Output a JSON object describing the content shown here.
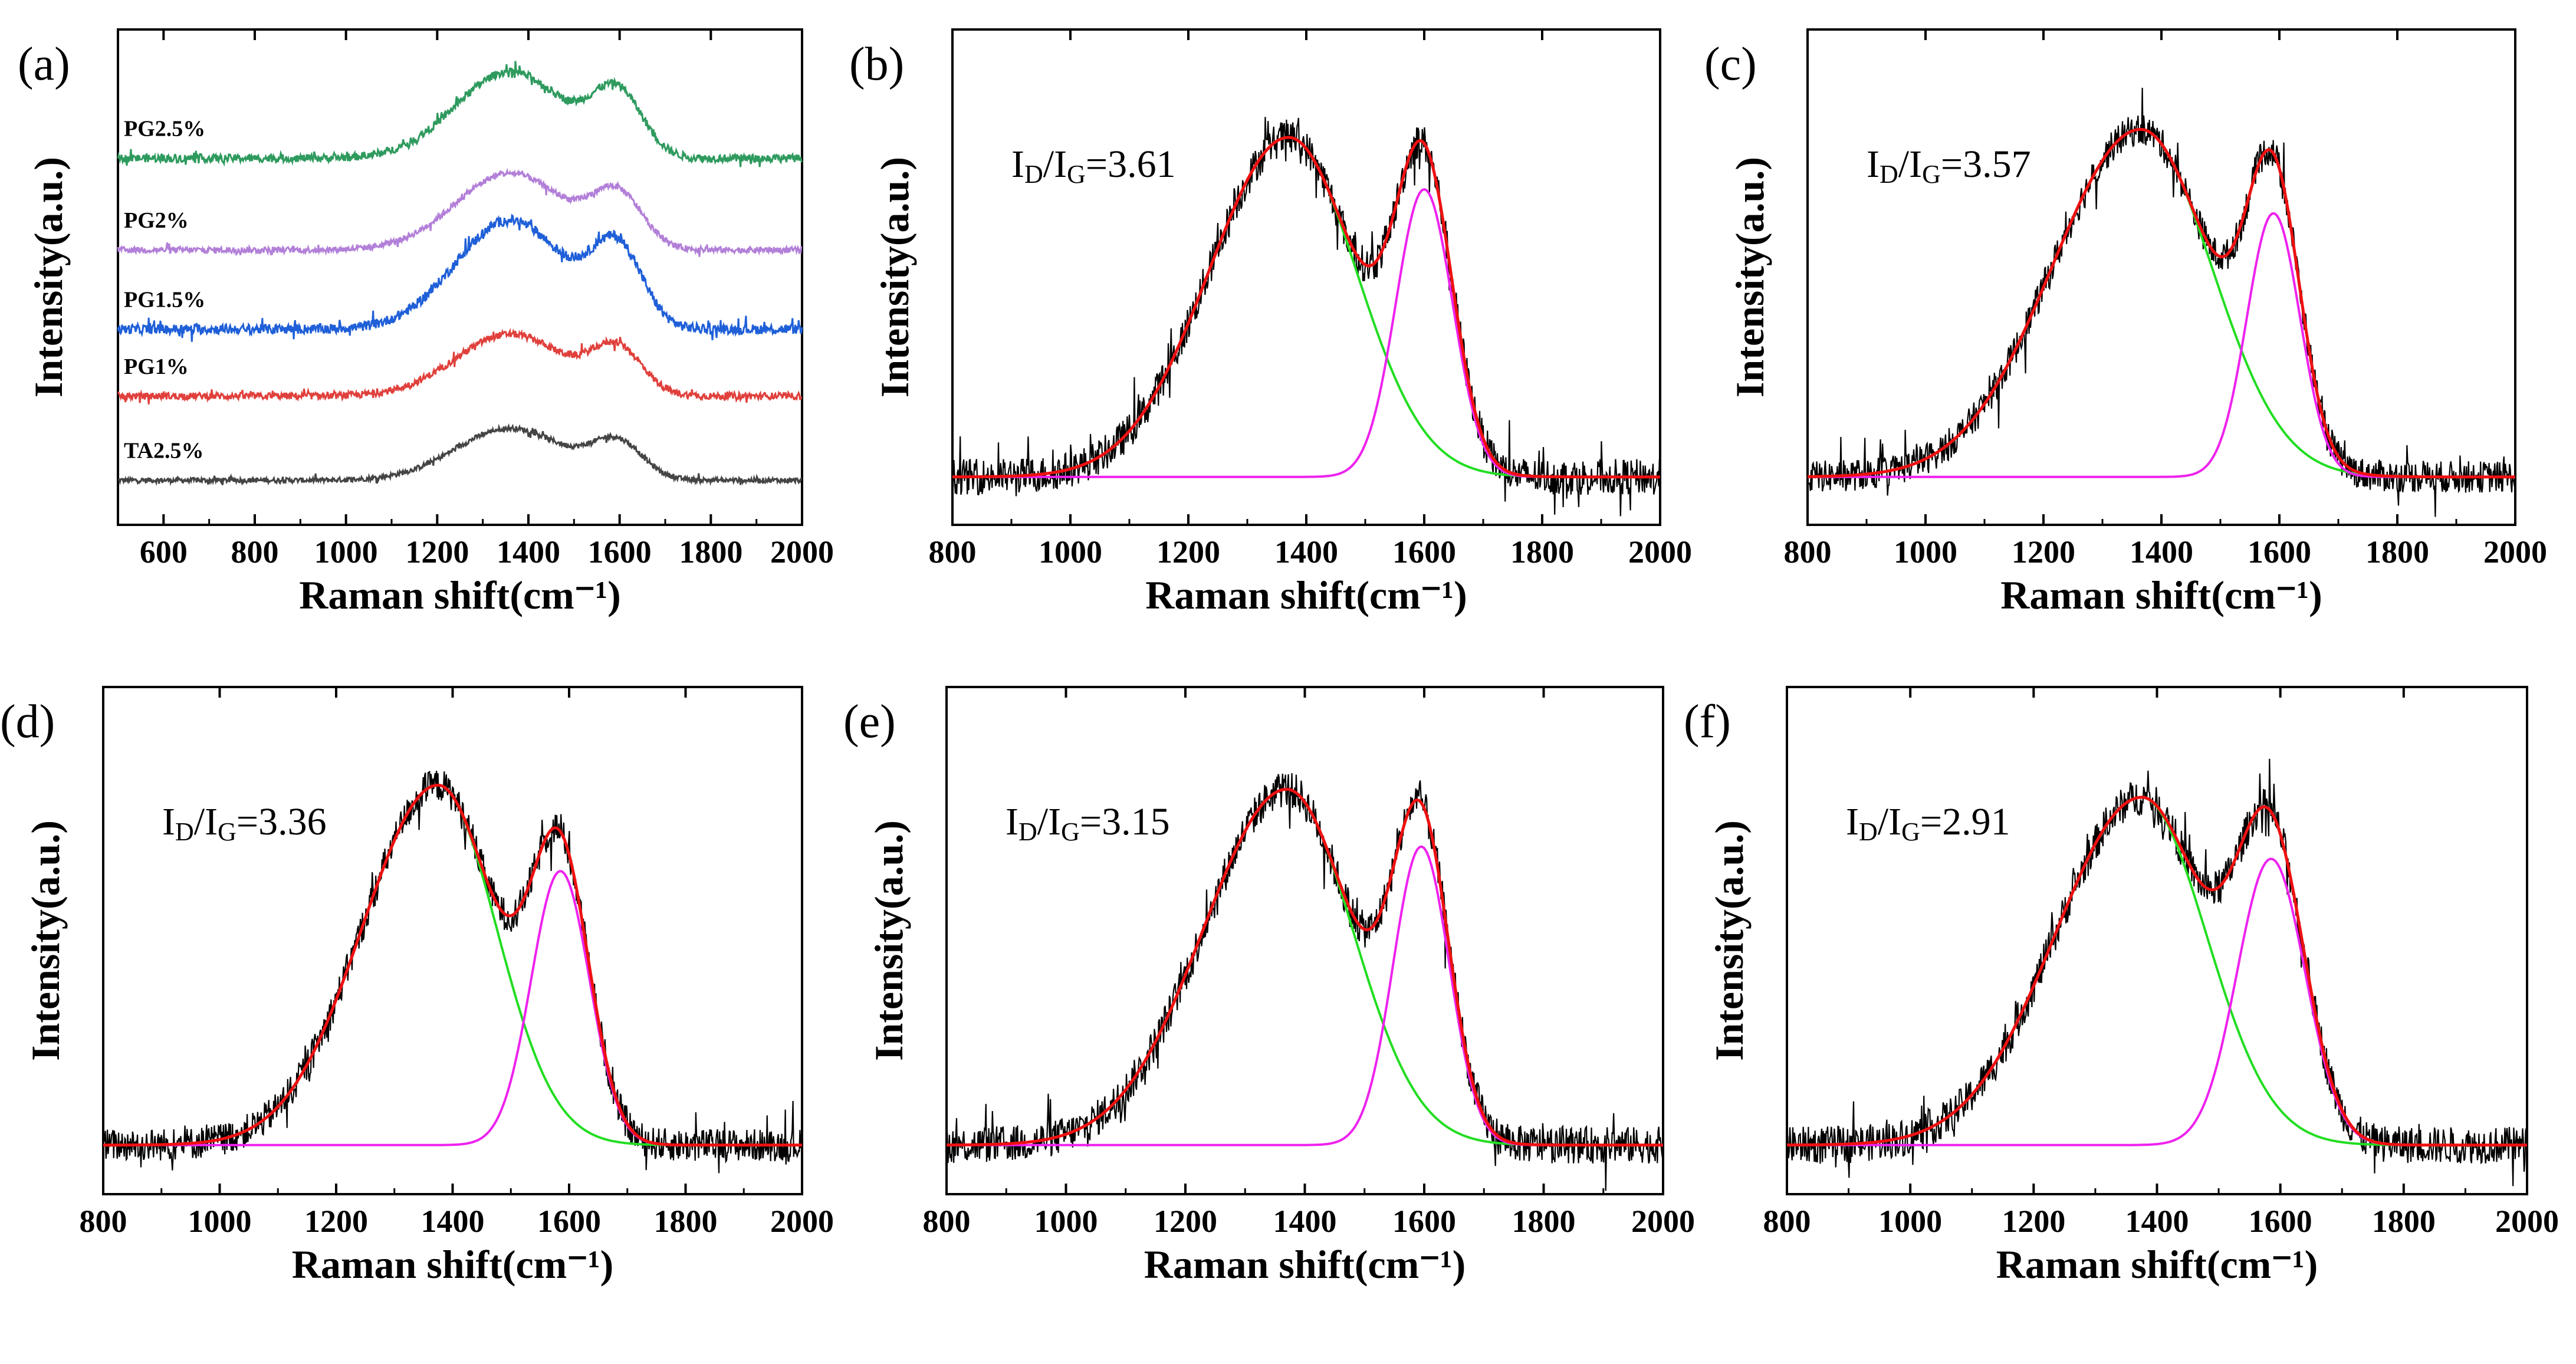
{
  "chart_data": [
    {
      "panel": "(a)",
      "type": "line",
      "xlabel": "Raman shift(cm⁻¹)",
      "ylabel": "Intensity(a.u.)",
      "xlim": [
        500,
        2000
      ],
      "xticks": [
        600,
        800,
        1000,
        1200,
        1400,
        1600,
        1800,
        2000
      ],
      "ylim": [
        0,
        10
      ],
      "series": [
        {
          "name": "TA2.5%",
          "color": "#444444",
          "baseline": 0.9,
          "d_height": 1.05,
          "g_height": 0.95,
          "noise": 0.05
        },
        {
          "name": "PG1%",
          "color": "#e0403c",
          "baseline": 2.6,
          "d_height": 1.25,
          "g_height": 1.2,
          "noise": 0.07
        },
        {
          "name": "PG1.5%",
          "color": "#1f5fd8",
          "baseline": 3.95,
          "d_height": 2.2,
          "g_height": 2.05,
          "noise": 0.1
        },
        {
          "name": "PG2%",
          "color": "#b27fd8",
          "baseline": 5.55,
          "d_height": 1.55,
          "g_height": 1.4,
          "noise": 0.06
        },
        {
          "name": "PG2.5%",
          "color": "#2e9a5e",
          "baseline": 7.4,
          "d_height": 1.75,
          "g_height": 1.65,
          "noise": 0.08
        }
      ]
    },
    {
      "panel": "(b)",
      "type": "line",
      "ratio": "3.61",
      "xlabel": "Raman shift(cm⁻¹)",
      "ylabel": "Intensity(a.u.)",
      "xlim": [
        800,
        2000
      ],
      "xticks": [
        800,
        1000,
        1200,
        1400,
        1600,
        1800,
        2000
      ],
      "ylim": [
        -0.12,
        1.12
      ],
      "d_band": {
        "center": 1370,
        "height": 0.85,
        "sigma_left": 135,
        "sigma_right": 115
      },
      "g_band": {
        "center": 1600,
        "height": 0.72,
        "sigma": 48
      },
      "noise": 0.045
    },
    {
      "panel": "(c)",
      "type": "line",
      "ratio": "3.57",
      "xlabel": "Raman shift(cm⁻¹)",
      "ylabel": "Intensity(a.u.)",
      "xlim": [
        800,
        2000
      ],
      "xticks": [
        800,
        1000,
        1200,
        1400,
        1600,
        1800,
        2000
      ],
      "ylim": [
        -0.12,
        1.12
      ],
      "d_band": {
        "center": 1365,
        "height": 0.87,
        "sigma_left": 150,
        "sigma_right": 120
      },
      "g_band": {
        "center": 1590,
        "height": 0.66,
        "sigma": 45
      },
      "noise": 0.04
    },
    {
      "panel": "(d)",
      "type": "line",
      "ratio": "3.36",
      "xlabel": "Raman shift(cm⁻¹)",
      "ylabel": "Intensity(a.u.)",
      "xlim": [
        800,
        2000
      ],
      "xticks": [
        800,
        1000,
        1200,
        1400,
        1600,
        1800,
        2000
      ],
      "ylim": [
        -0.12,
        1.12
      ],
      "d_band": {
        "center": 1375,
        "height": 0.88,
        "sigma_left": 130,
        "sigma_right": 100
      },
      "g_band": {
        "center": 1585,
        "height": 0.67,
        "sigma": 50
      },
      "noise": 0.04
    },
    {
      "panel": "(e)",
      "type": "line",
      "ratio": "3.15",
      "xlabel": "Raman shift(cm⁻¹)",
      "ylabel": "Intensity(a.u.)",
      "xlim": [
        800,
        2000
      ],
      "xticks": [
        800,
        1000,
        1200,
        1400,
        1600,
        1800,
        2000
      ],
      "ylim": [
        -0.12,
        1.12
      ],
      "d_band": {
        "center": 1370,
        "height": 0.87,
        "sigma_left": 140,
        "sigma_right": 110
      },
      "g_band": {
        "center": 1595,
        "height": 0.73,
        "sigma": 47
      },
      "noise": 0.045
    },
    {
      "panel": "(f)",
      "type": "line",
      "ratio": "2.91",
      "xlabel": "Raman shift(cm⁻¹)",
      "ylabel": "Intensity(a.u.)",
      "xlim": [
        800,
        2000
      ],
      "xticks": [
        800,
        1000,
        1200,
        1400,
        1600,
        1800,
        2000
      ],
      "ylim": [
        -0.12,
        1.12
      ],
      "d_band": {
        "center": 1375,
        "height": 0.85,
        "sigma_left": 140,
        "sigma_right": 105
      },
      "g_band": {
        "center": 1585,
        "height": 0.7,
        "sigma": 55
      },
      "noise": 0.045
    }
  ],
  "colors": {
    "raw_data": "#000000",
    "d_band_fit": "#22dd22",
    "g_band_fit": "#ee22ee",
    "total_fit": "#ee1111",
    "axes": "#000000"
  }
}
